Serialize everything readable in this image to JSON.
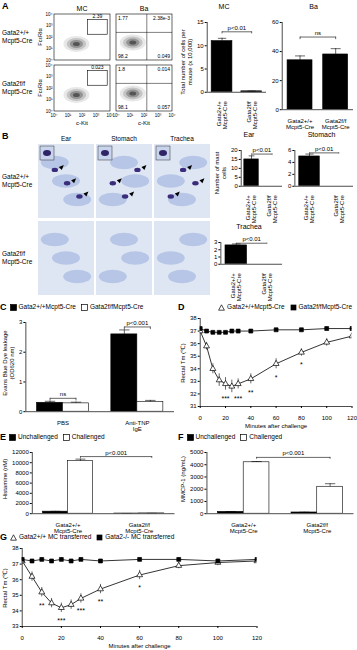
{
  "flow_cytometry": {
    "panel": "A",
    "columns": [
      "MC",
      "Ba"
    ],
    "x_label": "c-Kit",
    "y_label": "FcεRIα",
    "ticks": [
      "10⁰",
      "10¹",
      "10²",
      "10³",
      "10⁴"
    ],
    "rows": [
      {
        "label": "Gata2+/+ Mcpt5-Cre",
        "plots": [
          {
            "gate": "2.39"
          },
          {
            "upper_left": "1.77",
            "upper_right": "2.38e-3",
            "lower_left": "98.2",
            "lower_right": "0.049"
          }
        ]
      },
      {
        "label": "Gata2f/f Mcpt5-Cre",
        "plots": [
          {
            "gate": "0.023"
          },
          {
            "upper_left": "1.8",
            "upper_right": "0.014",
            "lower_left": "98.1",
            "lower_right": "0.057"
          }
        ]
      }
    ]
  },
  "histology": {
    "panel": "B",
    "columns": [
      "Ear",
      "Stomach",
      "Trachea"
    ],
    "rows": [
      "Gata2+/+ Mcpt5-Cre",
      "Gata2f/f Mcpt5-Cre"
    ]
  },
  "chart_data": [
    {
      "type": "bar",
      "title": "MC",
      "y_label": "Total number of cells per mouse (x 10,000)",
      "categories": [
        "Gata2+/+ Mcpt5-Cre",
        "Gata2f/f Mcpt5-Cre"
      ],
      "values": [
        11,
        0.2
      ],
      "errors": [
        0.6,
        0.05
      ],
      "color": "#000000",
      "ylim": [
        0,
        15
      ],
      "yticks": [
        0,
        5,
        10,
        15
      ],
      "annotations": [
        {
          "text": "p<0.01",
          "y": 13
        }
      ]
    },
    {
      "type": "bar",
      "title": "Ba",
      "categories": [
        "Gata2+/+ Mcpt5-Cre",
        "Gata2f/f Mcpt5-Cre"
      ],
      "values": [
        34,
        38
      ],
      "errors": [
        3,
        4
      ],
      "color": "#000000",
      "ylim": [
        0,
        60
      ],
      "yticks": [
        0,
        20,
        40,
        60
      ],
      "annotations": [
        {
          "text": "ns",
          "y": 50
        }
      ]
    },
    {
      "type": "bar",
      "title": "Ear",
      "y_label": "Number of mast cells",
      "categories": [
        "Gata2+/+ Mcpt5-Cre",
        "Gata2f/f Mcpt5-Cre"
      ],
      "values": [
        15,
        0
      ],
      "errors": [
        2,
        0
      ],
      "color": "#000000",
      "ylim": [
        0,
        20
      ],
      "yticks": [
        0,
        5,
        10,
        15,
        20
      ],
      "annotations": [
        {
          "text": "p<0.01",
          "y": 18
        }
      ]
    },
    {
      "type": "bar",
      "title": "Stomach",
      "categories": [
        "Gata2+/+ Mcpt5-Cre",
        "Gata2f/f Mcpt5-Cre"
      ],
      "values": [
        5,
        0
      ],
      "errors": [
        0.4,
        0
      ],
      "color": "#000000",
      "ylim": [
        0,
        6
      ],
      "yticks": [
        0,
        2,
        4,
        6
      ],
      "annotations": [
        {
          "text": "p<0.01",
          "y": 5.6
        }
      ]
    },
    {
      "type": "bar",
      "title": "Trachea",
      "categories": [
        "Gata2+/+ Mcpt5-Cre",
        "Gata2f/f Mcpt5-Cre"
      ],
      "values": [
        2.6,
        0
      ],
      "errors": [
        0.2,
        0
      ],
      "color": "#000000",
      "ylim": [
        0,
        3
      ],
      "yticks": [
        0,
        1,
        2,
        3
      ],
      "annotations": [
        {
          "text": "p<0.01",
          "y": 2.9
        }
      ]
    },
    {
      "type": "bar",
      "panel": "C",
      "y_label": "Evans Blue Dye leakage (OD620 nm)",
      "categories": [
        "PBS",
        "Anti-TNP IgE"
      ],
      "series": [
        {
          "name": "Gata2+/+Mcpt5-Cre",
          "color": "#000000",
          "values": [
            0.3,
            2.6
          ],
          "errors": [
            0.05,
            0.15
          ]
        },
        {
          "name": "Gata2f/fMcpt5-Cre",
          "color": "#ffffff",
          "values": [
            0.28,
            0.33
          ],
          "errors": [
            0.04,
            0.05
          ]
        }
      ],
      "ylim": [
        0,
        3
      ],
      "yticks": [
        0,
        1,
        2,
        3
      ],
      "legend": "top-left",
      "annotations": [
        {
          "text": "ns",
          "y": 0.45,
          "category": "PBS"
        },
        {
          "text": "p<0.001",
          "y": 2.85,
          "category": "Anti-TNP IgE"
        }
      ]
    },
    {
      "type": "line",
      "panel": "D",
      "y_label": "Rectal Tm (℃)",
      "x_label": "Minutes after challenge",
      "x": [
        0,
        5,
        10,
        15,
        20,
        25,
        30,
        40,
        60,
        80,
        100,
        120
      ],
      "series": [
        {
          "name": "Gata2+/+Mcpt5-Cre",
          "color": "#000000",
          "marker": "triangle-open",
          "values": [
            37,
            35.8,
            34.0,
            33.1,
            32.8,
            32.6,
            32.8,
            33.2,
            34.4,
            35.3,
            36.1,
            36.6
          ],
          "errors": [
            0.2,
            0.3,
            0.4,
            0.5,
            0.5,
            0.5,
            0.4,
            0.4,
            0.4,
            0.3,
            0.3,
            0.3
          ]
        },
        {
          "name": "Gata2f/fMcpt5-Cre",
          "color": "#000000",
          "marker": "square",
          "values": [
            37.2,
            37.0,
            36.9,
            36.9,
            36.9,
            37.0,
            37.0,
            37.0,
            37.1,
            37.1,
            37.2,
            37.2
          ],
          "errors": [
            0.1,
            0.1,
            0.1,
            0.1,
            0.1,
            0.1,
            0.1,
            0.1,
            0.1,
            0.1,
            0.1,
            0.1
          ]
        }
      ],
      "xlim": [
        0,
        120
      ],
      "xticks": [
        0,
        20,
        40,
        60,
        80,
        100,
        120
      ],
      "ylim": [
        31,
        38
      ],
      "yticks": [
        31,
        32,
        33,
        34,
        35,
        36,
        37,
        38
      ],
      "legend": "top-right",
      "annotations": [
        {
          "text": "***",
          "x": 20,
          "y": 31.6
        },
        {
          "text": "***",
          "x": 30,
          "y": 31.6
        },
        {
          "text": "**",
          "x": 40,
          "y": 32.1
        },
        {
          "text": "*",
          "x": 60,
          "y": 33.3
        },
        {
          "text": "*",
          "x": 80,
          "y": 34.3
        }
      ]
    },
    {
      "type": "bar",
      "panel": "E",
      "y_label": "Histamine (nM)",
      "categories": [
        "Gata2+/+ Mcpt5-Cre",
        "Gata2f/f Mcpt5-Cre"
      ],
      "series": [
        {
          "name": "Unchallenged",
          "color": "#000000",
          "values": [
            400,
            30
          ],
          "errors": [
            60,
            10
          ]
        },
        {
          "name": "Challenged",
          "color": "#ffffff",
          "values": [
            10300,
            60
          ],
          "errors": [
            400,
            15
          ]
        }
      ],
      "ylim": [
        0,
        12000
      ],
      "yticks": [
        0,
        2000,
        4000,
        6000,
        8000,
        10000,
        12000
      ],
      "legend": "top-left",
      "annotations": [
        {
          "text": "p<0.001",
          "y": 11200
        }
      ]
    },
    {
      "type": "bar",
      "panel": "F",
      "y_label": "MMCP-1 (ng/mL)",
      "categories": [
        "Gata2+/+ Mcpt5-Cre",
        "Gata2f/f Mcpt5-Cre"
      ],
      "series": [
        {
          "name": "Unchallenged",
          "color": "#000000",
          "values": [
            150,
            100
          ],
          "errors": [
            30,
            20
          ]
        },
        {
          "name": "Challenged",
          "color": "#ffffff",
          "values": [
            4200,
            2200
          ],
          "errors": [
            60,
            250
          ]
        }
      ],
      "ylim": [
        0,
        5000
      ],
      "yticks": [
        0,
        1000,
        2000,
        3000,
        4000,
        5000
      ],
      "legend": "top-left",
      "annotations": [
        {
          "text": "p<0.001",
          "y": 4600
        }
      ]
    },
    {
      "type": "line",
      "panel": "G",
      "y_label": "Rectal Tm (℃)",
      "x_label": "Minutes after challenge",
      "x": [
        0,
        5,
        10,
        15,
        20,
        25,
        30,
        40,
        60,
        80,
        100,
        120
      ],
      "series": [
        {
          "name": "Gata2+/+ MC transferred",
          "color": "#000000",
          "marker": "triangle-open",
          "values": [
            37.2,
            36.2,
            35.2,
            34.5,
            34.2,
            34.4,
            34.8,
            35.4,
            36.3,
            36.9,
            37.1,
            37.2
          ],
          "errors": [
            0.2,
            0.3,
            0.3,
            0.3,
            0.3,
            0.3,
            0.3,
            0.3,
            0.3,
            0.2,
            0.2,
            0.2
          ]
        },
        {
          "name": "Gata2-/- MC transferred",
          "color": "#000000",
          "marker": "square",
          "values": [
            37.3,
            37.2,
            37.3,
            37.2,
            37.3,
            37.2,
            37.3,
            37.2,
            37.3,
            37.3,
            37.2,
            37.3
          ],
          "errors": [
            0.1,
            0.1,
            0.1,
            0.1,
            0.1,
            0.1,
            0.1,
            0.1,
            0.1,
            0.1,
            0.1,
            0.1
          ]
        }
      ],
      "xlim": [
        0,
        120
      ],
      "xticks": [
        0,
        20,
        40,
        60,
        80,
        100,
        120
      ],
      "ylim": [
        33,
        38
      ],
      "yticks": [
        33,
        34,
        35,
        36,
        37,
        38
      ],
      "legend": "top-left",
      "annotations": [
        {
          "text": "**",
          "x": 10,
          "y": 34.3
        },
        {
          "text": "***",
          "x": 20,
          "y": 33.4
        },
        {
          "text": "***",
          "x": 30,
          "y": 34.0
        },
        {
          "text": "**",
          "x": 40,
          "y": 34.6
        },
        {
          "text": "*",
          "x": 60,
          "y": 35.5
        }
      ]
    }
  ]
}
